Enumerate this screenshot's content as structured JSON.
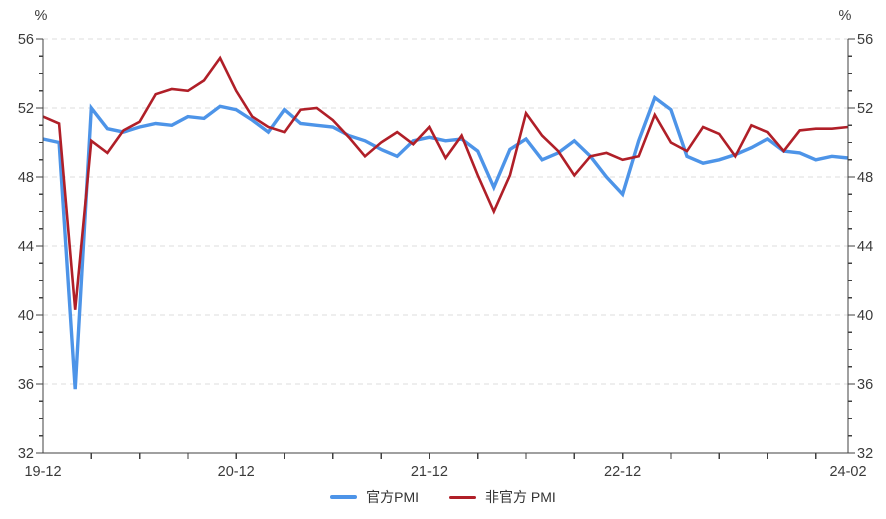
{
  "chart_data": {
    "type": "line",
    "title": "",
    "unit_label": "%",
    "xlabel": "",
    "ylabel": "%",
    "ylim": [
      32,
      56
    ],
    "y_major_step": 4,
    "y_minor_step": 1,
    "grid": "horizontal-dashed",
    "legend_position": "bottom-center",
    "axis_color": "#404040",
    "grid_color": "#dcdcdc",
    "label_color": "#3a3a3a",
    "x": [
      "19-12",
      "20-01",
      "20-02",
      "20-03",
      "20-04",
      "20-05",
      "20-06",
      "20-07",
      "20-08",
      "20-09",
      "20-10",
      "20-11",
      "20-12",
      "21-01",
      "21-02",
      "21-03",
      "21-04",
      "21-05",
      "21-06",
      "21-07",
      "21-08",
      "21-09",
      "21-10",
      "21-11",
      "21-12",
      "22-01",
      "22-02",
      "22-03",
      "22-04",
      "22-05",
      "22-06",
      "22-07",
      "22-08",
      "22-09",
      "22-10",
      "22-11",
      "22-12",
      "23-01",
      "23-02",
      "23-03",
      "23-04",
      "23-05",
      "23-06",
      "23-07",
      "23-08",
      "23-09",
      "23-10",
      "23-11",
      "23-12",
      "24-01",
      "24-02"
    ],
    "x_tick_every": 3,
    "x_labeled_ticks": [
      {
        "index": 0,
        "label": "19-12"
      },
      {
        "index": 12,
        "label": "20-12"
      },
      {
        "index": 24,
        "label": "21-12"
      },
      {
        "index": 36,
        "label": "22-12"
      },
      {
        "index": 50,
        "label": "24-02"
      }
    ],
    "series": [
      {
        "name": "官方PMI",
        "color": "#4d94e8",
        "stroke_width": 3.4,
        "values": [
          50.2,
          50.0,
          35.7,
          52.0,
          50.8,
          50.6,
          50.9,
          51.1,
          51.0,
          51.5,
          51.4,
          52.1,
          51.9,
          51.3,
          50.6,
          51.9,
          51.1,
          51.0,
          50.9,
          50.4,
          50.1,
          49.6,
          49.2,
          50.1,
          50.3,
          50.1,
          50.2,
          49.5,
          47.4,
          49.6,
          50.2,
          49.0,
          49.4,
          50.1,
          49.2,
          48.0,
          47.0,
          50.1,
          52.6,
          51.9,
          49.2,
          48.8,
          49.0,
          49.3,
          49.7,
          50.2,
          49.5,
          49.4,
          49.0,
          49.2,
          49.1
        ]
      },
      {
        "name": "非官方 PMI",
        "color": "#b01f28",
        "stroke_width": 2.6,
        "values": [
          51.5,
          51.1,
          40.3,
          50.1,
          49.4,
          50.7,
          51.2,
          52.8,
          53.1,
          53.0,
          53.6,
          54.9,
          53.0,
          51.5,
          50.9,
          50.6,
          51.9,
          52.0,
          51.3,
          50.3,
          49.2,
          50.0,
          50.6,
          49.9,
          50.9,
          49.1,
          50.4,
          48.1,
          46.0,
          48.1,
          51.7,
          50.4,
          49.5,
          48.1,
          49.2,
          49.4,
          49.0,
          49.2,
          51.6,
          50.0,
          49.5,
          50.9,
          50.5,
          49.2,
          51.0,
          50.6,
          49.5,
          50.7,
          50.8,
          50.8,
          50.9
        ]
      }
    ]
  },
  "legend": {
    "official_label": "官方PMI",
    "unofficial_label": "非官方 PMI"
  }
}
